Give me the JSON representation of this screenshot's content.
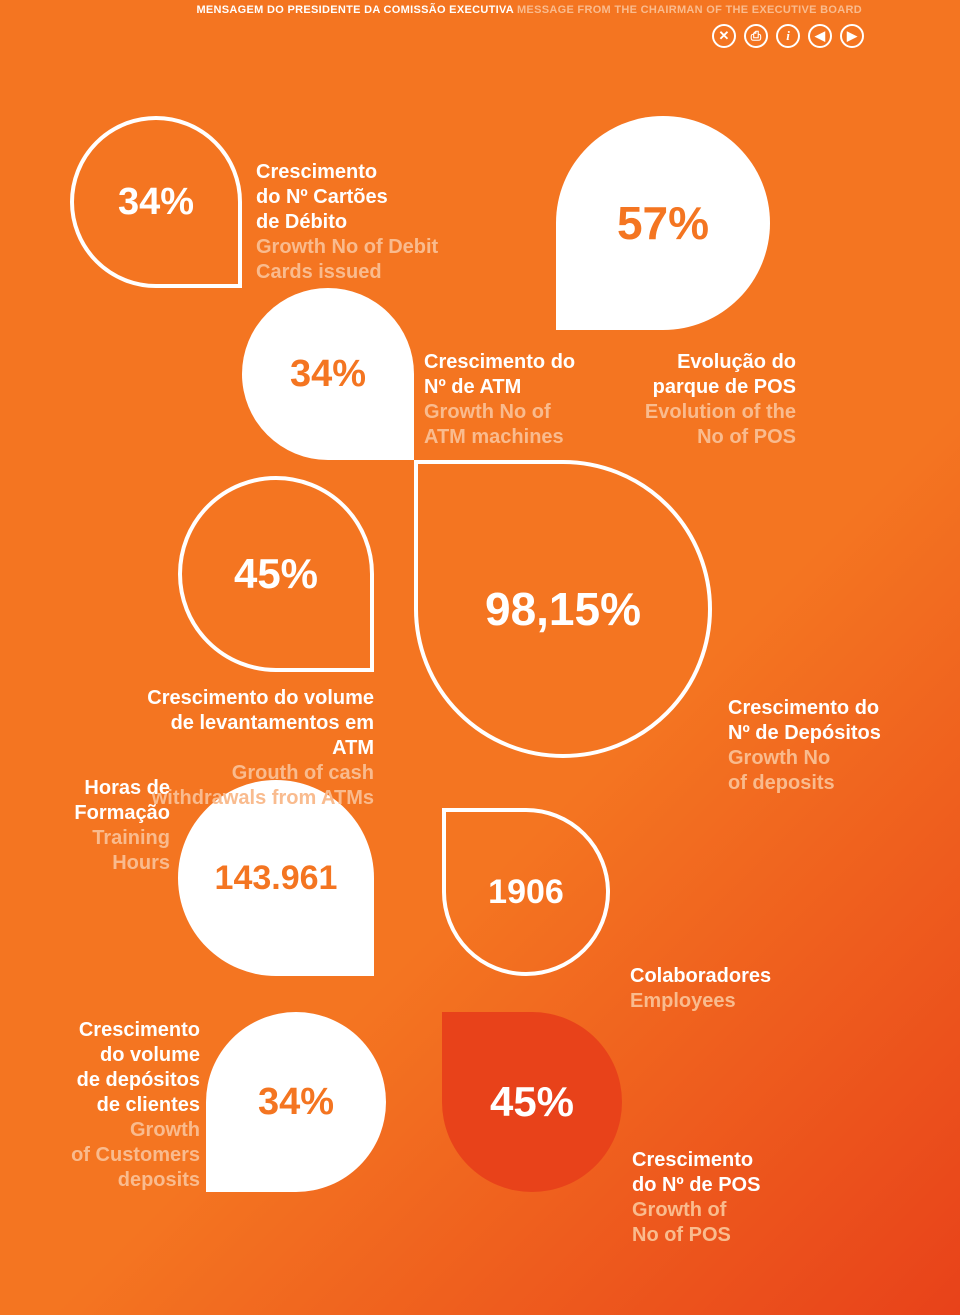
{
  "header": {
    "pt": "MENSAGEM DO PRESIDENTE DA COMISSÃO EXECUTIVA",
    "en": "MESSAGE FROM THE CHAIRMAN OF THE EXECUTIVE BOARD"
  },
  "toolbar": {
    "close": "✕",
    "print": "⎙",
    "info": "i",
    "prev": "◀",
    "next": "▶"
  },
  "leaves": {
    "l1": "34%",
    "l2": "34%",
    "l3": "57%",
    "l4": "45%",
    "l5": "98,15%",
    "l6": "143.961",
    "l7": "1906",
    "l8": "34%",
    "l9": "45%"
  },
  "labels": {
    "t1": {
      "pt": "Crescimento\ndo Nº Cartões\nde Débito",
      "en": "Growth No of Debit\nCards issued"
    },
    "t2": {
      "pt": "Crescimento do\nNº de ATM",
      "en": "Growth No of\nATM machines"
    },
    "t3": {
      "pt": "Evolução do\nparque de POS",
      "en": "Evolution of the\nNo of POS"
    },
    "t4": {
      "pt": "Crescimento do volume\nde levantamentos em ATM",
      "en": "Grouth of cash\nwithdrawals from ATMs"
    },
    "t5": {
      "pt": "Crescimento do\nNº de Depósitos",
      "en": "Growth No\nof deposits"
    },
    "t6": {
      "pt": "Horas de\nFormação",
      "en": "Training\nHours"
    },
    "t7": {
      "pt": "Colaboradores",
      "en": "Employees"
    },
    "t8": {
      "pt": "Crescimento\ndo volume\nde depósitos\nde clientes",
      "en": "Growth\nof Customers\ndeposits"
    },
    "t9": {
      "pt": "Crescimento\ndo Nº de POS",
      "en": "Growth of\nNo of POS"
    }
  },
  "colors": {
    "bg_start": "#f47521",
    "bg_end": "#e8421a",
    "white": "#ffffff",
    "en_text": "#f9bb8e",
    "accent_leaf": "#e8421a"
  }
}
